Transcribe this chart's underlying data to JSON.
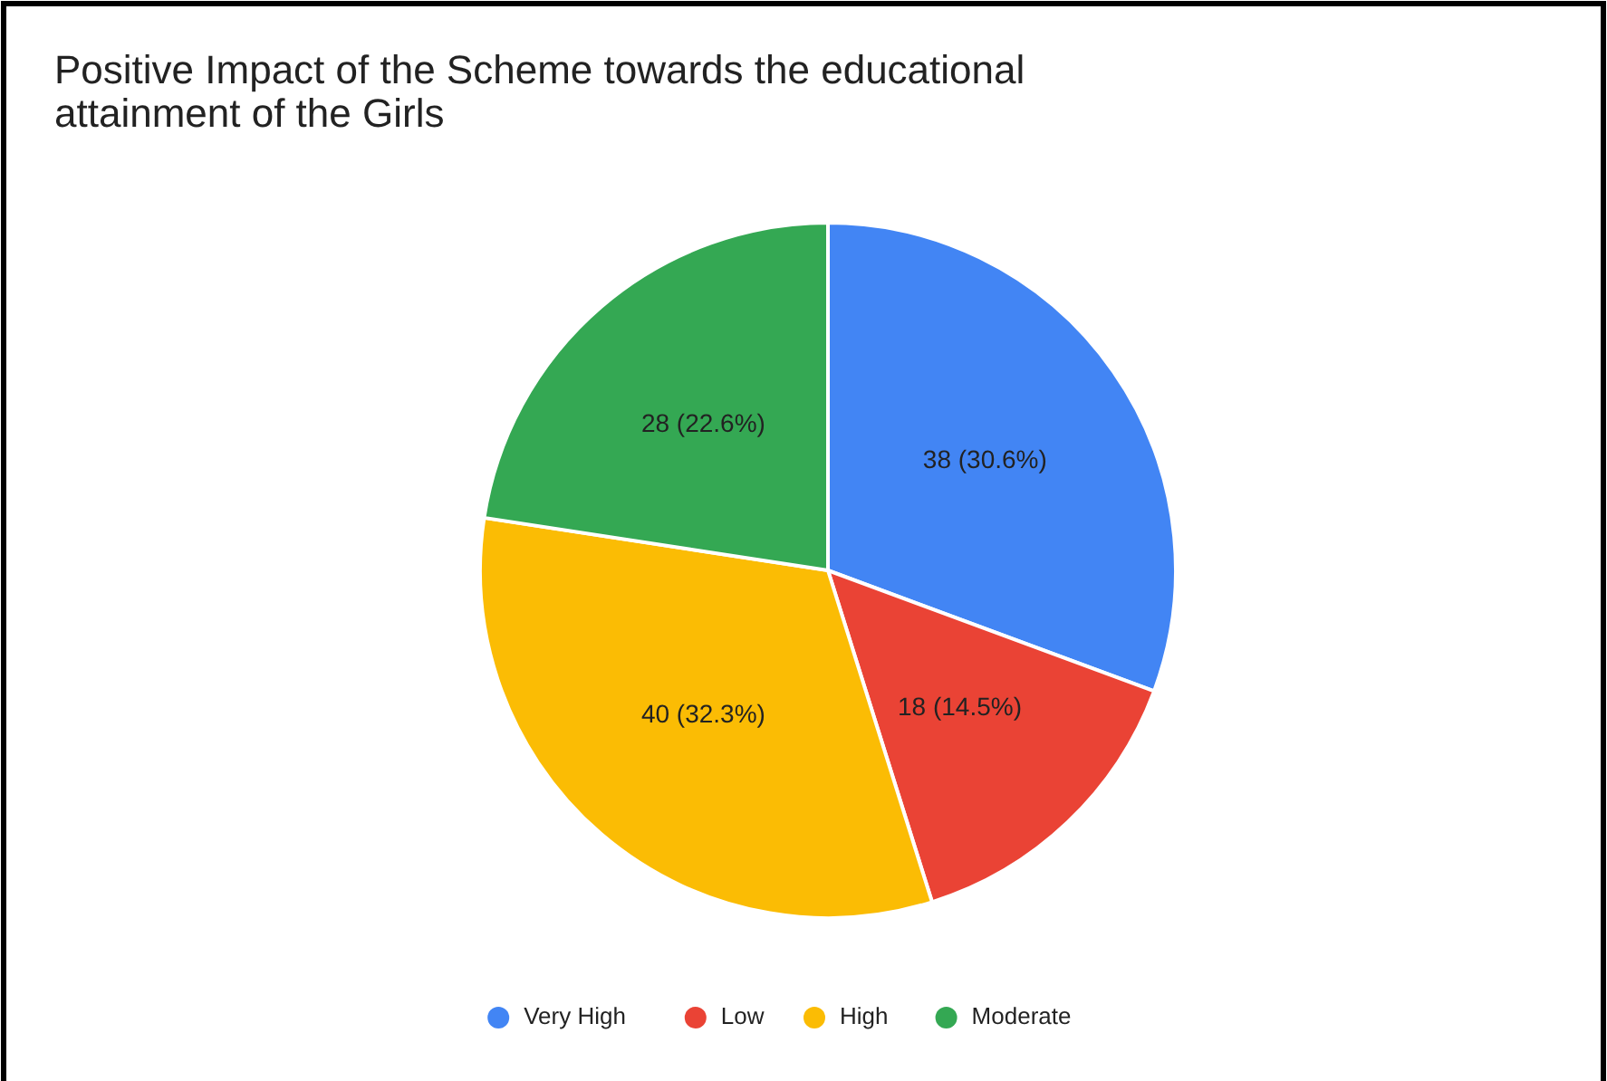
{
  "chart_data": {
    "type": "pie",
    "title": "Positive Impact of the Scheme towards the educational attainment of the Girls",
    "categories": [
      "Very High",
      "Low",
      "High",
      "Moderate"
    ],
    "values": [
      38,
      18,
      40,
      28
    ],
    "colors": [
      "#4285f4",
      "#ea4335",
      "#fbbc04",
      "#34a853"
    ],
    "value_labels": [
      "38 (30.6%)",
      "18 (14.5%)",
      "40 (32.3%)",
      "28 (22.6%)"
    ],
    "legend": "bottom"
  }
}
